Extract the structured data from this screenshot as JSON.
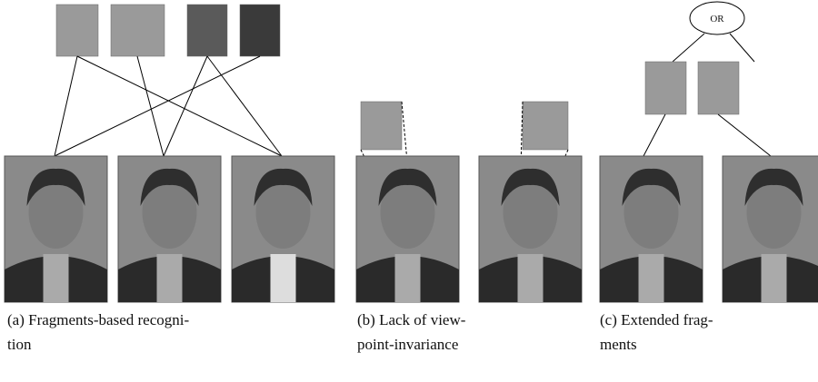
{
  "figure": {
    "or_label": "OR",
    "captions": [
      [
        "(a) Fragments-based recogni-",
        "tion"
      ],
      [
        "(b) Lack of view-",
        "point-invariance"
      ],
      [
        "(c) Extended frag-",
        "ments"
      ]
    ]
  }
}
